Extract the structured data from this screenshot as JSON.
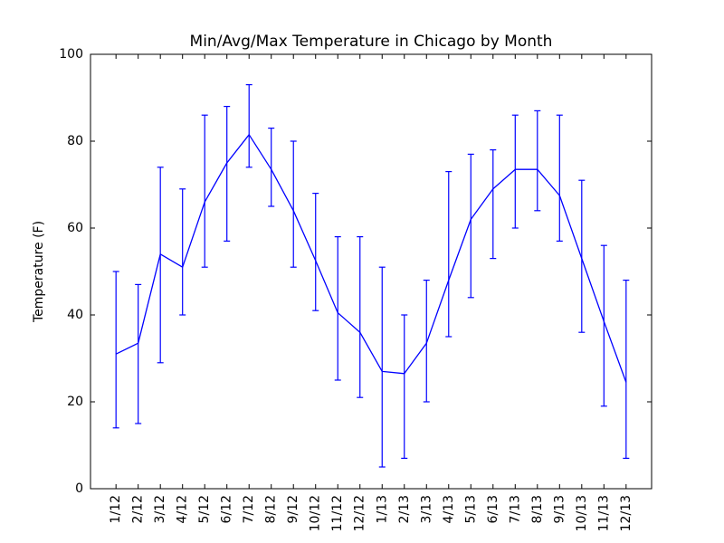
{
  "page": {
    "background_color": "#ffffff"
  },
  "chart_data": {
    "type": "line",
    "representation": "average line with min-max vertical error bars (matplotlib errorbar style)",
    "title": "Min/Avg/Max Temperature in Chicago by Month",
    "xlabel": "",
    "ylabel": "Temperature (F)",
    "categories": [
      "1/12",
      "2/12",
      "3/12",
      "4/12",
      "5/12",
      "6/12",
      "7/12",
      "8/12",
      "9/12",
      "10/12",
      "11/12",
      "12/12",
      "1/13",
      "2/13",
      "3/13",
      "4/13",
      "5/13",
      "6/13",
      "7/13",
      "8/13",
      "9/13",
      "10/13",
      "11/13",
      "12/13"
    ],
    "series": [
      {
        "name": "min",
        "values": [
          14,
          15,
          29,
          40,
          51,
          57,
          74,
          65,
          51,
          41,
          25,
          21,
          5,
          7,
          20,
          35,
          44,
          53,
          60,
          64,
          57,
          36,
          19,
          7
        ]
      },
      {
        "name": "avg",
        "values": [
          31,
          33.5,
          54,
          51,
          66,
          75,
          81.5,
          73.5,
          64,
          52.5,
          40.5,
          36,
          27,
          26.5,
          33.5,
          48,
          62,
          69,
          73.5,
          73.5,
          67.5,
          53,
          38.5,
          24.5
        ]
      },
      {
        "name": "max",
        "values": [
          50,
          47,
          74,
          69,
          86,
          88,
          93,
          83,
          80,
          68,
          58,
          58,
          51,
          40,
          48,
          73,
          77,
          78,
          86,
          87,
          86,
          71,
          56,
          48
        ]
      }
    ],
    "ylim": [
      0,
      100
    ],
    "y_ticks": [
      0,
      20,
      40,
      60,
      80,
      100
    ],
    "x_tick_rotation_degrees": 90,
    "grid": false,
    "legend": "none",
    "line_color": "#0000ff",
    "frame_color": "#000000",
    "tick_style": "inward ticks on all four sides"
  }
}
